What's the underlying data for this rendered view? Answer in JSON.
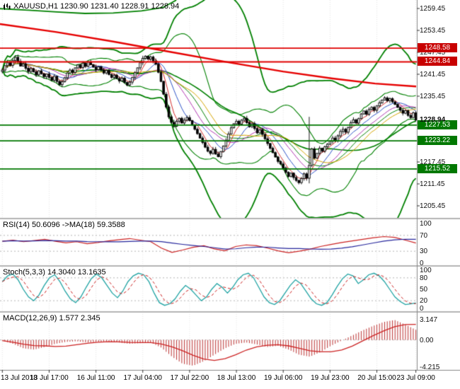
{
  "header": {
    "symbol_line": "XAUUSD,H1 1230.90 1231.40 1228.91 1228.94"
  },
  "chart_data": {
    "type": "candlestick",
    "symbol": "XAUUSD",
    "timeframe": "H1",
    "quote": {
      "open": "1230.90",
      "high": "1231.40",
      "low": "1228.91",
      "close": "1228.94"
    },
    "x_labels": [
      "13 Jul 2018",
      "13 Jul 17:00",
      "16 Jul 11:00",
      "17 Jul 04:00",
      "17 Jul 22:00",
      "18 Jul 13:00",
      "19 Jul 06:00",
      "19 Jul 23:00",
      "20 Jul 15:00",
      "23 Jul 09:00"
    ],
    "y_axis": {
      "ticks": [
        "1259.45",
        "1253.45",
        "1247.45",
        "1241.45",
        "1235.45",
        "1217.45",
        "1211.45",
        "1205.45"
      ]
    },
    "price_levels": {
      "resistance": [
        {
          "price": "1248.58"
        },
        {
          "price": "1244.84"
        }
      ],
      "support": [
        {
          "price": "1227.53"
        },
        {
          "price": "1223.22"
        },
        {
          "price": "1215.52"
        }
      ],
      "current": "1228.94"
    },
    "closes": [
      1242.6,
      1243.8,
      1244.6,
      1243.9,
      1245.2,
      1246.1,
      1245.0,
      1243.7,
      1244.3,
      1243.1,
      1242.2,
      1243.0,
      1242.1,
      1241.3,
      1242.4,
      1241.6,
      1240.8,
      1241.5,
      1240.6,
      1239.8,
      1240.9,
      1239.5,
      1238.6,
      1239.4,
      1240.5,
      1241.8,
      1242.6,
      1241.9,
      1243.2,
      1244.0,
      1243.3,
      1244.5,
      1243.6,
      1244.8,
      1244.1,
      1243.4,
      1242.7,
      1243.5,
      1242.6,
      1241.8,
      1242.5,
      1241.4,
      1240.6,
      1241.2,
      1240.3,
      1239.6,
      1240.4,
      1239.2,
      1238.5,
      1239.3,
      1240.6,
      1241.9,
      1243.2,
      1244.6,
      1245.8,
      1246.4,
      1245.6,
      1246.2,
      1245.1,
      1244.2,
      1242.0,
      1239.5,
      1236.0,
      1232.5,
      1229.8,
      1228.3,
      1227.2,
      1228.6,
      1229.4,
      1228.1,
      1228.9,
      1229.6,
      1228.8,
      1227.6,
      1226.4,
      1225.2,
      1224.0,
      1222.8,
      1221.5,
      1220.4,
      1219.8,
      1220.9,
      1219.6,
      1218.9,
      1220.3,
      1221.8,
      1223.4,
      1225.1,
      1226.8,
      1227.9,
      1228.6,
      1227.8,
      1228.9,
      1229.4,
      1228.2,
      1227.1,
      1227.9,
      1226.6,
      1225.4,
      1226.2,
      1225.0,
      1223.8,
      1222.5,
      1221.2,
      1220.0,
      1218.8,
      1217.6,
      1216.9,
      1215.8,
      1214.6,
      1213.5,
      1214.4,
      1213.2,
      1212.4,
      1211.8,
      1212.9,
      1214.2,
      1213.0,
      1216.5,
      1221.0,
      1218.5,
      1219.8,
      1221.2,
      1220.4,
      1221.6,
      1222.3,
      1223.1,
      1224.0,
      1223.2,
      1224.6,
      1225.8,
      1226.4,
      1225.6,
      1226.9,
      1228.2,
      1229.0,
      1228.1,
      1229.3,
      1230.6,
      1231.4,
      1230.5,
      1231.8,
      1232.4,
      1231.6,
      1232.8,
      1233.6,
      1234.4,
      1235.0,
      1234.2,
      1234.8,
      1233.9,
      1233.2,
      1232.4,
      1231.6,
      1230.8,
      1231.5,
      1230.2,
      1229.6,
      1230.9,
      1228.94
    ],
    "spikes": {
      "118": [
        1229.8,
        1211.6
      ],
      "159": [
        1231.4,
        1228.91
      ]
    },
    "overlays": {
      "upper_line": [
        [
          0,
          1259.4
        ],
        [
          40,
          1259.0
        ],
        [
          80,
          1258.5
        ],
        [
          120,
          1258.1
        ],
        [
          160,
          1258.2
        ],
        [
          200,
          1258.8
        ],
        [
          230,
          1259.7
        ],
        [
          248,
          1261.6
        ],
        [
          256,
          1263.8
        ]
      ],
      "red_ma": [
        [
          0,
          1255.2
        ],
        [
          80,
          1253.0
        ],
        [
          160,
          1250.4
        ],
        [
          240,
          1247.6
        ],
        [
          320,
          1244.8
        ],
        [
          400,
          1242.2
        ],
        [
          470,
          1240.3
        ],
        [
          530,
          1238.9
        ],
        [
          588,
          1238.1
        ]
      ]
    },
    "indicators": {
      "rsi": {
        "label": "RSI(14) 50.6096 ->MA(18) 59.3588",
        "axis": [
          "100",
          "70",
          "30",
          "0"
        ],
        "levels": [
          70,
          30
        ],
        "values": [
          55,
          58,
          54,
          57,
          60,
          55,
          51,
          54,
          49,
          52,
          56,
          59,
          62,
          58,
          54,
          38,
          27,
          33,
          40,
          44,
          36,
          31,
          42,
          46,
          44,
          38,
          31,
          26,
          30,
          35,
          42,
          47,
          52,
          56,
          60,
          64,
          67,
          65,
          58,
          50.6
        ]
      },
      "stoch": {
        "label": "Stoch(5,3,3) 14.3040 13.1635",
        "axis": [
          "100",
          "80",
          "50",
          "20",
          "0"
        ],
        "levels": [
          80,
          20
        ],
        "values": [
          70,
          85,
          90,
          75,
          50,
          30,
          20,
          35,
          60,
          80,
          88,
          70,
          45,
          25,
          15,
          30,
          55,
          78,
          90,
          80,
          60,
          40,
          28,
          45,
          70,
          85,
          92,
          88,
          70,
          40,
          15,
          8,
          12,
          25,
          45,
          60,
          50,
          35,
          20,
          30,
          50,
          65,
          55,
          40,
          55,
          75,
          88,
          92,
          80,
          55,
          30,
          15,
          10,
          20,
          40,
          60,
          75,
          65,
          45,
          25,
          12,
          8,
          15,
          35,
          58,
          78,
          90,
          85,
          65,
          75,
          88,
          92,
          85,
          70,
          50,
          30,
          18,
          10,
          12,
          14.3
        ]
      },
      "macd": {
        "label": "MACD(12,26,9) 1.577 2.345",
        "axis": [
          "3.147",
          "0.00",
          "-4.215"
        ],
        "values": [
          -0.1,
          -0.6,
          -1.3,
          -1.5,
          -1.1,
          -0.6,
          -0.3,
          -0.2,
          -0.4,
          -0.3,
          -0.2,
          -0.4,
          -0.6,
          -0.5,
          -0.4,
          -1.2,
          -2.6,
          -3.7,
          -4.0,
          -3.3,
          -2.3,
          -1.3,
          -0.6,
          -0.4,
          -0.7,
          -1.1,
          -0.9,
          -1.5,
          -2.3,
          -2.6,
          -1.9,
          -0.9,
          -0.1,
          0.7,
          1.5,
          2.2,
          2.8,
          3.1,
          2.4,
          1.577
        ]
      }
    },
    "colors": {
      "band_green": "#008000",
      "ma_red": "#e60000",
      "level_red": "#e00000",
      "level_green": "#007800",
      "candle": "#000000",
      "rsi_line": "#cc2222",
      "rsi_ma": "#26269c",
      "stoch_main": "#1fa3a3",
      "stoch_signal": "#cc2222",
      "macd_hist": "#bb3333",
      "macd_signal": "#cc2222"
    }
  }
}
